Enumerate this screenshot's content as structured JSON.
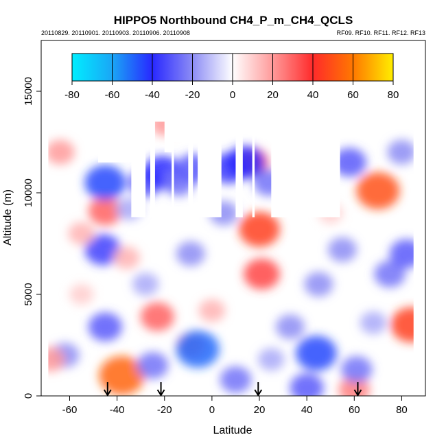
{
  "chart_data": {
    "type": "heatmap",
    "title": "HIPPO5 Northbound CH4_P_m_CH4_QCLS",
    "subtitle_left": "20110829. 20110901. 20110903. 20110906. 20110908",
    "subtitle_right": "RF09. RF10. RF11. RF12. RF13",
    "xlabel": "Latitude",
    "ylabel": "Altitude (m)",
    "xlim": [
      -72,
      90
    ],
    "ylim": [
      0,
      17500
    ],
    "x_ticks": [
      -60,
      -40,
      -20,
      0,
      20,
      40,
      60,
      80
    ],
    "x_tick_labels": [
      "-60",
      "-40",
      "-20",
      "0",
      "20",
      "40",
      "60",
      "80"
    ],
    "y_ticks": [
      0,
      5000,
      10000,
      15000
    ],
    "y_tick_labels": [
      "0",
      "5000",
      "10000",
      "15000"
    ],
    "colorbar": {
      "range": [
        -80,
        80
      ],
      "ticks": [
        -80,
        -60,
        -40,
        -20,
        0,
        20,
        40,
        60,
        80
      ],
      "tick_labels": [
        "-80",
        "-60",
        "-40",
        "-20",
        "0",
        "20",
        "40",
        "60",
        "80"
      ],
      "stops": [
        {
          "value": -80,
          "color": "#00eeff"
        },
        {
          "value": -60,
          "color": "#1aa6f6"
        },
        {
          "value": -40,
          "color": "#2828ff"
        },
        {
          "value": -20,
          "color": "#8c8cf5"
        },
        {
          "value": 0,
          "color": "#ffffff"
        },
        {
          "value": 20,
          "color": "#ff9a9a"
        },
        {
          "value": 40,
          "color": "#ff2a2a"
        },
        {
          "value": 60,
          "color": "#ff7800"
        },
        {
          "value": 80,
          "color": "#ffee00"
        }
      ]
    },
    "coverage": {
      "base_top_m": 8800,
      "columns": [
        {
          "lat_range": [
            -69,
            -61
          ],
          "top_m": 13200
        },
        {
          "lat_range": [
            -61,
            -48
          ],
          "top_m": 13500
        },
        {
          "lat_range": [
            -48,
            -34
          ],
          "top_m": 11500
        },
        {
          "lat_range": [
            -28,
            -26
          ],
          "top_m": 12500
        },
        {
          "lat_range": [
            -24,
            -20
          ],
          "top_m": 13500
        },
        {
          "lat_range": [
            -20,
            -17
          ],
          "top_m": 12000
        },
        {
          "lat_range": [
            -16,
            -10
          ],
          "top_m": 12500
        },
        {
          "lat_range": [
            -8,
            -6
          ],
          "top_m": 13000
        },
        {
          "lat_range": [
            4,
            10
          ],
          "top_m": 13000
        },
        {
          "lat_range": [
            13,
            17
          ],
          "top_m": 14000
        },
        {
          "lat_range": [
            18,
            25
          ],
          "top_m": 14200
        },
        {
          "lat_range": [
            54,
            85
          ],
          "top_m": 13300
        }
      ]
    },
    "features": [
      {
        "lat": 20,
        "alt_m": 8200,
        "value": 45
      },
      {
        "lat": 21,
        "alt_m": 6000,
        "value": 35
      },
      {
        "lat": 70,
        "alt_m": 10100,
        "value": 50
      },
      {
        "lat": 84,
        "alt_m": 3500,
        "value": 45
      },
      {
        "lat": -38,
        "alt_m": 1000,
        "value": 55
      },
      {
        "lat": -23,
        "alt_m": 3900,
        "value": 30
      },
      {
        "lat": -9,
        "alt_m": 2500,
        "value": 20
      },
      {
        "lat": -45,
        "alt_m": 9100,
        "value": 30
      },
      {
        "lat": 60,
        "alt_m": 300,
        "value": 25
      },
      {
        "lat": -64,
        "alt_m": 12000,
        "value": 20
      },
      {
        "lat": -45,
        "alt_m": 10500,
        "value": -45
      },
      {
        "lat": -6,
        "alt_m": 2300,
        "value": -50
      },
      {
        "lat": 44,
        "alt_m": 2100,
        "value": -45
      },
      {
        "lat": -46,
        "alt_m": 7200,
        "value": -35
      },
      {
        "lat": -45,
        "alt_m": 3400,
        "value": -30
      },
      {
        "lat": -25,
        "alt_m": 1500,
        "value": -25
      },
      {
        "lat": 40,
        "alt_m": 400,
        "value": -30
      },
      {
        "lat": 61,
        "alt_m": 1300,
        "value": -25
      },
      {
        "lat": 10,
        "alt_m": 800,
        "value": -25
      },
      {
        "lat": 33,
        "alt_m": 3400,
        "value": -20
      },
      {
        "lat": 75,
        "alt_m": 6000,
        "value": -25
      },
      {
        "lat": -9,
        "alt_m": 7000,
        "value": -20
      },
      {
        "lat": 55,
        "alt_m": 7200,
        "value": -20
      },
      {
        "lat": 82,
        "alt_m": 7000,
        "value": -30
      },
      {
        "lat": -28,
        "alt_m": 5500,
        "value": -15
      },
      {
        "lat": 45,
        "alt_m": 5500,
        "value": -20
      },
      {
        "lat": -55,
        "alt_m": 5000,
        "value": 10
      },
      {
        "lat": -62,
        "alt_m": 2000,
        "value": -20
      },
      {
        "lat": 5,
        "alt_m": 9000,
        "value": -20
      },
      {
        "lat": 17,
        "alt_m": 11500,
        "value": 30
      },
      {
        "lat": -20,
        "alt_m": 13400,
        "value": 20
      },
      {
        "lat": -28,
        "alt_m": 10500,
        "value": -30
      },
      {
        "lat": -21,
        "alt_m": 11000,
        "value": -40
      },
      {
        "lat": -14,
        "alt_m": 10500,
        "value": -25
      },
      {
        "lat": 7,
        "alt_m": 11200,
        "value": -35
      },
      {
        "lat": 14,
        "alt_m": 11500,
        "value": -40
      },
      {
        "lat": 24,
        "alt_m": 10500,
        "value": -25
      },
      {
        "lat": 58,
        "alt_m": 11500,
        "value": -30
      },
      {
        "lat": 80,
        "alt_m": 12000,
        "value": -20
      },
      {
        "lat": -8,
        "alt_m": 11200,
        "value": -30
      },
      {
        "lat": -55,
        "alt_m": 8000,
        "value": 15
      },
      {
        "lat": -36,
        "alt_m": 6800,
        "value": 15
      },
      {
        "lat": 0,
        "alt_m": 4200,
        "value": 15
      },
      {
        "lat": 50,
        "alt_m": 9000,
        "value": 10
      },
      {
        "lat": -68,
        "alt_m": 1800,
        "value": 20
      },
      {
        "lat": 25,
        "alt_m": 1800,
        "value": -15
      },
      {
        "lat": -35,
        "alt_m": 9200,
        "value": -15
      },
      {
        "lat": 68,
        "alt_m": 3600,
        "value": -15
      }
    ],
    "flight_markers": [
      {
        "lat": -44,
        "label": "↓"
      },
      {
        "lat": -21.5,
        "label": "↓"
      },
      {
        "lat": 19.5,
        "label": "↓"
      },
      {
        "lat": 61.5,
        "label": "↓"
      }
    ]
  }
}
